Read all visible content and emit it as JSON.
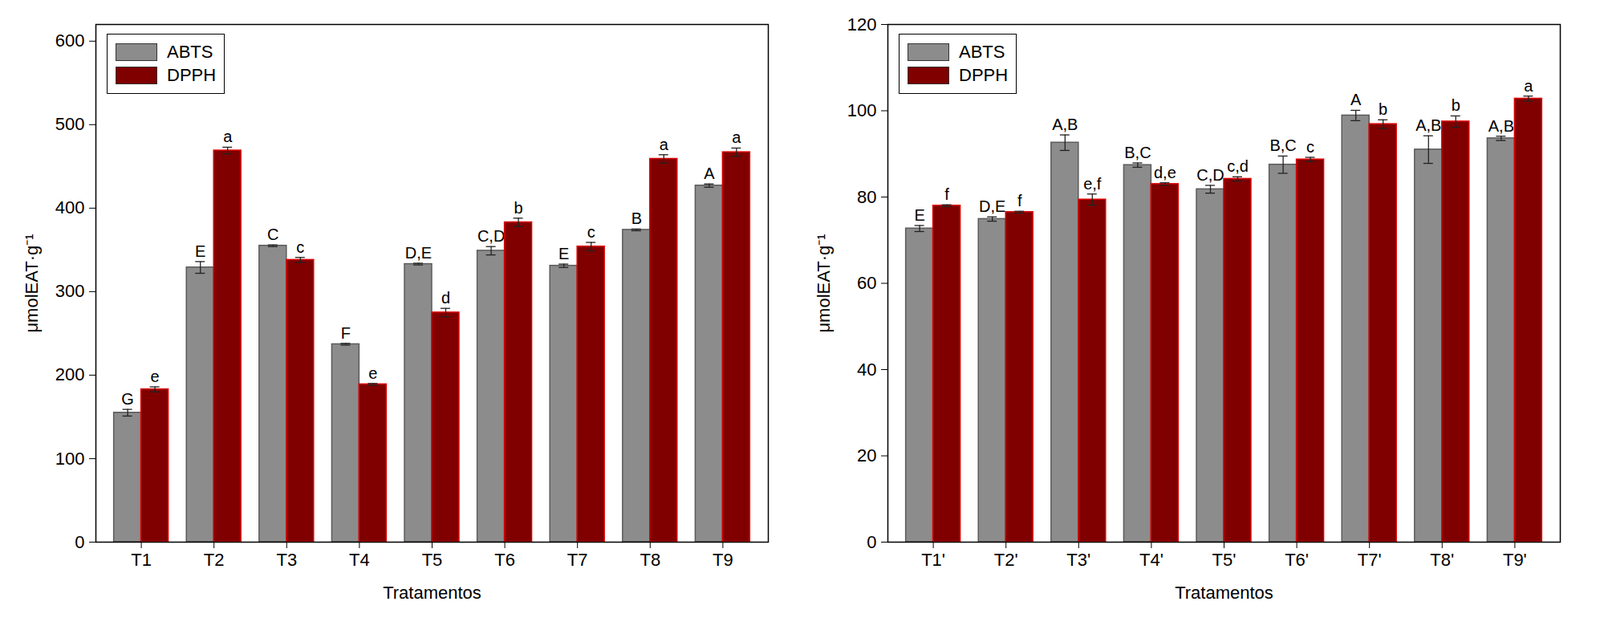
{
  "chart_data": [
    {
      "type": "bar",
      "x_label": "Tratamentos",
      "y_label": "μmolEAT·g⁻¹",
      "categories": [
        "T1",
        "T2",
        "T3",
        "T4",
        "T5",
        "T6",
        "T7",
        "T8",
        "T9"
      ],
      "series": [
        {
          "name": "ABTS",
          "color": "#8c8c8c",
          "values": [
            155,
            329,
            355,
            237,
            333,
            349,
            331,
            374,
            427
          ],
          "errors": [
            4,
            7,
            1,
            1,
            1,
            5,
            2,
            1,
            2
          ],
          "letters": [
            "G",
            "E",
            "C",
            "F",
            "D,E",
            "C,D",
            "E",
            "B",
            "A"
          ]
        },
        {
          "name": "DPPH",
          "color": "#800000",
          "values": [
            183,
            469,
            338,
            189,
            275,
            383,
            354,
            459,
            467
          ],
          "errors": [
            3,
            4,
            3,
            1,
            5,
            5,
            5,
            5,
            5
          ],
          "letters": [
            "e",
            "a",
            "c",
            "e",
            "d",
            "b",
            "c",
            "a",
            "a"
          ]
        }
      ],
      "ylim": [
        0,
        620
      ],
      "yticks": [
        0,
        100,
        200,
        300,
        400,
        500,
        600
      ],
      "legend": "top-left"
    },
    {
      "type": "bar",
      "x_label": "Tratamentos",
      "y_label": "μmolEAT·g⁻¹",
      "categories": [
        "T1'",
        "T2'",
        "T3'",
        "T4'",
        "T5'",
        "T6'",
        "T7'",
        "T8'",
        "T9'"
      ],
      "series": [
        {
          "name": "ABTS",
          "color": "#8c8c8c",
          "values": [
            72.7,
            74.9,
            92.6,
            87.4,
            81.8,
            87.5,
            98.9,
            91,
            93.6
          ],
          "errors": [
            0.7,
            0.5,
            1.8,
            0.5,
            0.9,
            2,
            1.2,
            3.2,
            0.5
          ],
          "letters": [
            "E",
            "D,E",
            "A,B",
            "B,C",
            "C,D",
            "B,C",
            "A",
            "A,B",
            "A,B"
          ]
        },
        {
          "name": "DPPH",
          "color": "#800000",
          "values": [
            78,
            76.5,
            79.4,
            83,
            84.2,
            88.7,
            96.9,
            97.5,
            102.8
          ],
          "errors": [
            0.2,
            0.2,
            1.3,
            0.3,
            0.5,
            0.5,
            1,
            1.3,
            0.6
          ],
          "letters": [
            "f",
            "f",
            "e,f",
            "d,e",
            "c,d",
            "c",
            "b",
            "b",
            "a"
          ]
        }
      ],
      "ylim": [
        0,
        120
      ],
      "yticks": [
        0,
        20,
        40,
        60,
        80,
        100,
        120
      ],
      "legend": "top-left"
    }
  ]
}
